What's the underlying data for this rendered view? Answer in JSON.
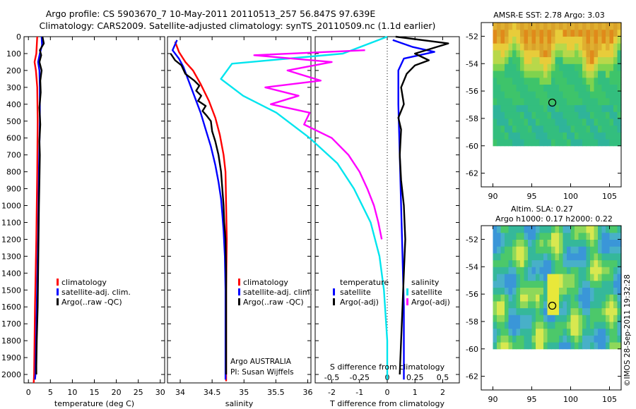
{
  "header": {
    "title_line1": "Argo profile: CS 5903670_7 10-May-2011 20110513_257 56.847S 97.639E",
    "title_line2": "Climatology: CARS2009. Satellite-adjusted climatology: synTS_20110509.nc (1.1d earlier)"
  },
  "credits": {
    "argo_line1": "Argo AUSTRALIA",
    "argo_line2": "PI: Susan Wijffels",
    "timestamp": "©IMOS 28-Sep-2011 19:32:28"
  },
  "colors": {
    "climatology": "#ff0000",
    "satellite": "#0000ff",
    "argo": "#000000",
    "salinity_satellite": "#00e5ee",
    "salinity_argo": "#ff00ff"
  },
  "chart_data": [
    {
      "type": "line",
      "panel": "temperature",
      "xlabel": "temperature (deg C)",
      "x_ticks": [
        0,
        5,
        10,
        15,
        20,
        25,
        30
      ],
      "xlim": [
        -1,
        31
      ],
      "ylim": [
        2050,
        0
      ],
      "y_ticks": [
        0,
        100,
        200,
        300,
        400,
        500,
        600,
        700,
        800,
        900,
        1000,
        1100,
        1200,
        1300,
        1400,
        1500,
        1600,
        1700,
        1800,
        1900,
        2000
      ],
      "legend": {
        "position": "lower-right",
        "entries": [
          "climatology",
          "satellite-adj. clim.",
          "Argo(..raw -QC)"
        ]
      },
      "series": [
        {
          "name": "climatology",
          "color": "#ff0000",
          "points": [
            [
              2.0,
              0
            ],
            [
              1.8,
              100
            ],
            [
              1.4,
              150
            ],
            [
              1.7,
              200
            ],
            [
              2.0,
              300
            ],
            [
              2.1,
              500
            ],
            [
              2.0,
              800
            ],
            [
              1.8,
              1200
            ],
            [
              1.5,
              1600
            ],
            [
              1.3,
              2000
            ],
            [
              1.2,
              2050
            ]
          ]
        },
        {
          "name": "satellite-adj. clim.",
          "color": "#0000ff",
          "points": [
            [
              3.0,
              0
            ],
            [
              3.1,
              50
            ],
            [
              2.6,
              100
            ],
            [
              2.2,
              150
            ],
            [
              2.5,
              200
            ],
            [
              2.6,
              300
            ],
            [
              2.6,
              500
            ],
            [
              2.4,
              800
            ],
            [
              2.2,
              1200
            ],
            [
              1.9,
              1600
            ],
            [
              1.6,
              2000
            ],
            [
              1.5,
              2030
            ]
          ]
        },
        {
          "name": "Argo(..raw -QC)",
          "color": "#000000",
          "points": [
            [
              3.2,
              0
            ],
            [
              3.5,
              40
            ],
            [
              2.6,
              80
            ],
            [
              2.9,
              110
            ],
            [
              2.5,
              150
            ],
            [
              3.0,
              200
            ],
            [
              2.7,
              260
            ],
            [
              2.8,
              330
            ],
            [
              2.5,
              420
            ],
            [
              2.7,
              520
            ],
            [
              2.5,
              620
            ],
            [
              2.6,
              700
            ],
            [
              2.5,
              850
            ],
            [
              2.4,
              1000
            ],
            [
              2.3,
              1200
            ],
            [
              2.2,
              1400
            ],
            [
              2.1,
              1600
            ],
            [
              1.9,
              1800
            ],
            [
              1.8,
              1950
            ],
            [
              1.8,
              2000
            ]
          ]
        }
      ]
    },
    {
      "type": "line",
      "panel": "salinity",
      "xlabel": "salinity",
      "x_ticks": [
        34,
        34.5,
        35,
        35.5,
        36
      ],
      "x_tick_labels": [
        "34",
        "34.5",
        "35",
        "35.5",
        "36"
      ],
      "xlim": [
        33.8,
        36.05
      ],
      "ylim": [
        2050,
        0
      ],
      "legend": {
        "position": "lower-right",
        "entries": [
          "climatology",
          "satellite-adj. clim.",
          "Argo(..raw -QC)"
        ]
      },
      "series": [
        {
          "name": "climatology",
          "color": "#ff0000",
          "points": [
            [
              33.92,
              30
            ],
            [
              33.98,
              90
            ],
            [
              34.08,
              150
            ],
            [
              34.2,
              200
            ],
            [
              34.32,
              280
            ],
            [
              34.45,
              380
            ],
            [
              34.55,
              480
            ],
            [
              34.62,
              580
            ],
            [
              34.68,
              700
            ],
            [
              34.71,
              800
            ],
            [
              34.72,
              1000
            ],
            [
              34.73,
              1200
            ],
            [
              34.72,
              1500
            ],
            [
              34.72,
              1800
            ],
            [
              34.72,
              2000
            ],
            [
              34.72,
              2040
            ]
          ]
        },
        {
          "name": "satellite-adj. clim.",
          "color": "#0000ff",
          "points": [
            [
              33.95,
              20
            ],
            [
              33.88,
              80
            ],
            [
              33.98,
              130
            ],
            [
              34.05,
              180
            ],
            [
              34.12,
              250
            ],
            [
              34.22,
              350
            ],
            [
              34.32,
              450
            ],
            [
              34.4,
              550
            ],
            [
              34.48,
              650
            ],
            [
              34.55,
              760
            ],
            [
              34.6,
              860
            ],
            [
              34.64,
              960
            ],
            [
              34.66,
              1050
            ],
            [
              34.68,
              1150
            ],
            [
              34.7,
              1300
            ],
            [
              34.71,
              1500
            ],
            [
              34.71,
              1700
            ],
            [
              34.71,
              1900
            ],
            [
              34.71,
              2030
            ]
          ]
        },
        {
          "name": "Argo(..raw -QC)",
          "color": "#000000",
          "points": [
            [
              33.85,
              100
            ],
            [
              33.92,
              140
            ],
            [
              34.02,
              170
            ],
            [
              34.08,
              220
            ],
            [
              34.22,
              260
            ],
            [
              34.3,
              290
            ],
            [
              34.25,
              320
            ],
            [
              34.33,
              350
            ],
            [
              34.28,
              380
            ],
            [
              34.4,
              410
            ],
            [
              34.35,
              440
            ],
            [
              34.42,
              470
            ],
            [
              34.48,
              500
            ],
            [
              34.5,
              560
            ],
            [
              34.55,
              620
            ],
            [
              34.6,
              700
            ],
            [
              34.64,
              800
            ],
            [
              34.66,
              900
            ],
            [
              34.68,
              1000
            ],
            [
              34.69,
              1100
            ],
            [
              34.71,
              1200
            ],
            [
              34.72,
              1400
            ],
            [
              34.72,
              1600
            ],
            [
              34.72,
              1800
            ],
            [
              34.72,
              2000
            ]
          ]
        }
      ]
    },
    {
      "type": "line",
      "panel": "difference",
      "xlabel": "T difference from climatology",
      "xlabel_top": "S difference from climatology",
      "t_ticks": [
        -2,
        -1,
        0,
        1,
        2
      ],
      "s_ticks": [
        -0.5,
        -0.25,
        0,
        0.25,
        0.5
      ],
      "s_tick_labels": [
        "-0.5",
        "-0.25",
        "0",
        "0.25",
        "0.5"
      ],
      "xlim_T": [
        -2.6,
        2.6
      ],
      "ylim": [
        2050,
        0
      ],
      "legend_temperature": {
        "title": "temperature",
        "entries": [
          "satellite",
          "Argo(-adj)"
        ]
      },
      "legend_salinity": {
        "title": "salinity",
        "entries": [
          "satellite",
          "Argo(-adj)"
        ]
      },
      "series": [
        {
          "name": "satellite",
          "group": "temperature",
          "color": "#0000ff",
          "points": [
            [
              0.2,
              20
            ],
            [
              0.9,
              60
            ],
            [
              1.7,
              90
            ],
            [
              0.6,
              130
            ],
            [
              0.4,
              200
            ],
            [
              0.4,
              400
            ],
            [
              0.45,
              700
            ],
            [
              0.5,
              1000
            ],
            [
              0.55,
              1300
            ],
            [
              0.6,
              1600
            ],
            [
              0.6,
              2000
            ],
            [
              0.6,
              2030
            ]
          ]
        },
        {
          "name": "Argo(-adj)",
          "group": "temperature",
          "color": "#000000",
          "points": [
            [
              0.3,
              0
            ],
            [
              2.2,
              40
            ],
            [
              1.0,
              100
            ],
            [
              1.5,
              140
            ],
            [
              1.0,
              170
            ],
            [
              0.7,
              220
            ],
            [
              0.5,
              300
            ],
            [
              0.6,
              400
            ],
            [
              0.4,
              480
            ],
            [
              0.5,
              550
            ],
            [
              0.45,
              700
            ],
            [
              0.5,
              850
            ],
            [
              0.6,
              1000
            ],
            [
              0.65,
              1200
            ],
            [
              0.6,
              1400
            ],
            [
              0.55,
              1600
            ],
            [
              0.5,
              1800
            ],
            [
              0.45,
              2000
            ]
          ]
        },
        {
          "name": "satellite",
          "group": "salinity",
          "color": "#00e5ee",
          "points": [
            [
              0.0,
              0
            ],
            [
              -0.4,
              100
            ],
            [
              -1.4,
              160
            ],
            [
              -1.5,
              250
            ],
            [
              -1.3,
              350
            ],
            [
              -1.0,
              450
            ],
            [
              -0.7,
              600
            ],
            [
              -0.45,
              750
            ],
            [
              -0.3,
              900
            ],
            [
              -0.15,
              1100
            ],
            [
              -0.07,
              1300
            ],
            [
              -0.03,
              1500
            ],
            [
              0.0,
              1800
            ],
            [
              0.0,
              2030
            ]
          ]
        },
        {
          "name": "Argo(-adj)",
          "group": "salinity",
          "color": "#ff00ff",
          "points": [
            [
              -0.2,
              80
            ],
            [
              -1.2,
              110
            ],
            [
              -0.5,
              150
            ],
            [
              -0.9,
              200
            ],
            [
              -0.6,
              260
            ],
            [
              -1.1,
              300
            ],
            [
              -0.8,
              350
            ],
            [
              -1.05,
              400
            ],
            [
              -0.7,
              450
            ],
            [
              -0.75,
              520
            ],
            [
              -0.5,
              600
            ],
            [
              -0.35,
              700
            ],
            [
              -0.25,
              800
            ],
            [
              -0.18,
              900
            ],
            [
              -0.12,
              1000
            ],
            [
              -0.08,
              1100
            ],
            [
              -0.05,
              1200
            ]
          ]
        }
      ]
    },
    {
      "type": "heatmap",
      "panel": "sst_map",
      "title": "AMSR-E SST: 2.78 Argo: 3.03",
      "x_ticks": [
        90,
        95,
        100,
        105
      ],
      "y_ticks": [
        -52,
        -54,
        -56,
        -58,
        -60,
        -62
      ],
      "xlim": [
        88.5,
        106.5
      ],
      "ylim": [
        -63,
        -51
      ],
      "data_extent": {
        "lon": [
          90,
          106.5
        ],
        "lat": [
          -60,
          -51
        ]
      },
      "marker": {
        "lon": 97.639,
        "lat": -56.847
      }
    },
    {
      "type": "heatmap",
      "panel": "sla_map",
      "title_line1": "Altim. SLA: 0.27",
      "title_line2": "Argo h1000: 0.17 h2000: 0.22",
      "x_ticks": [
        90,
        95,
        100,
        105
      ],
      "y_ticks": [
        -52,
        -54,
        -56,
        -58,
        -60,
        -62
      ],
      "xlim": [
        88.5,
        106.5
      ],
      "ylim": [
        -63,
        -51
      ],
      "data_extent": {
        "lon": [
          90,
          106.5
        ],
        "lat": [
          -60,
          -51
        ]
      },
      "marker": {
        "lon": 97.639,
        "lat": -56.847
      }
    }
  ]
}
